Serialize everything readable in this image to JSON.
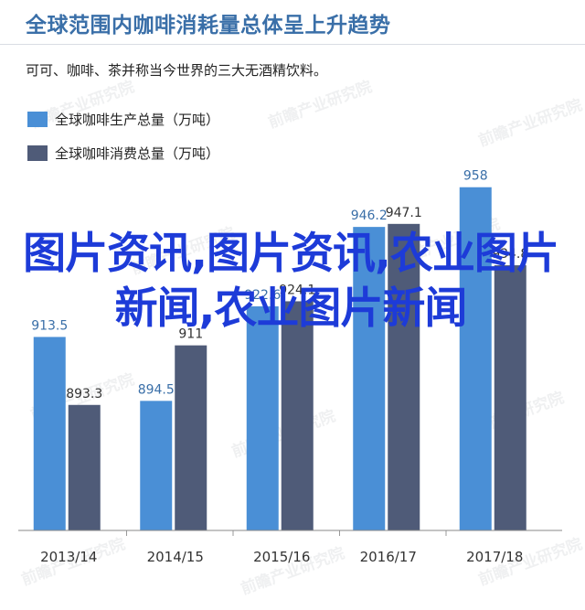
{
  "header": {
    "title": "全球范围内咖啡消耗量总体呈上升趋势",
    "subtitle": "可可、咖啡、茶并称当今世界的三大无酒精饮料。"
  },
  "overlay": {
    "text": "图片资讯,图片资讯,农业图片新闻,农业图片新闻"
  },
  "watermark": {
    "text": "前瞻产业研究院"
  },
  "chart_data": {
    "type": "bar",
    "categories": [
      "2013/14",
      "2014/15",
      "2015/16",
      "2016/17",
      "2017/18"
    ],
    "series": [
      {
        "name": "全球咖啡生产总量（万吨）",
        "color": "#4a8fd6",
        "values": [
          913.5,
          894.5,
          922.6,
          946.2,
          958
        ]
      },
      {
        "name": "全球咖啡消费总量（万吨）",
        "color": "#4f5b78",
        "values": [
          893.3,
          911,
          924.1,
          947.1,
          934.8
        ]
      }
    ],
    "data_labels": [
      [
        "913.5",
        "894.5",
        "922.6",
        "946.2",
        "958"
      ],
      [
        "893.3",
        "911",
        "924.1",
        "947.1",
        "934.8"
      ]
    ],
    "ylim": [
      856,
      962
    ],
    "grid": false,
    "legend": "top-left"
  }
}
